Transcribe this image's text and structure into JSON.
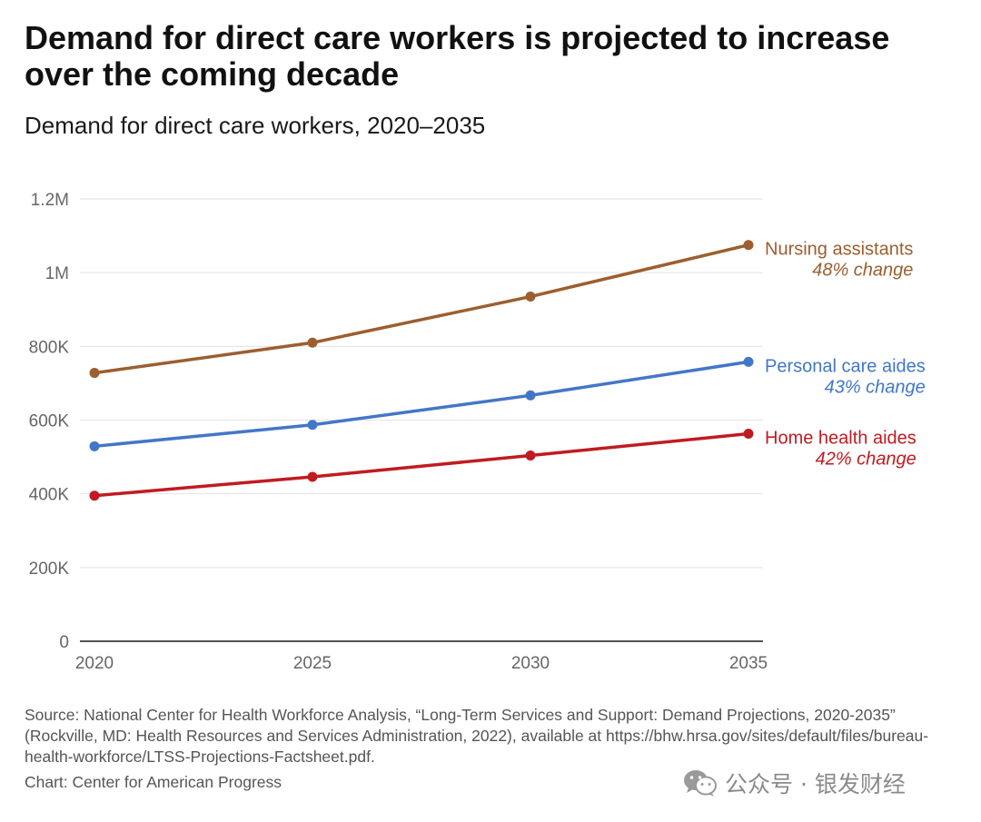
{
  "title": "Demand for direct care workers is projected to increase over the coming decade",
  "subtitle": "Demand for direct care workers, 2020–2035",
  "chart_data": {
    "type": "line",
    "x": [
      2020,
      2025,
      2030,
      2035
    ],
    "x_tick_labels": [
      "2020",
      "2025",
      "2030",
      "2035"
    ],
    "y_ticks": [
      0,
      200000,
      400000,
      600000,
      800000,
      1000000,
      1200000
    ],
    "y_tick_labels": [
      "0",
      "200K",
      "400K",
      "600K",
      "800K",
      "1M",
      "1.2M"
    ],
    "ylim": [
      0,
      1200000
    ],
    "grid": true,
    "legend": "direct labels at right end of each line",
    "series": [
      {
        "name": "Nursing assistants",
        "change_label": "48% change",
        "color": "#9c5e2f",
        "values": [
          728000,
          810000,
          935000,
          1075000
        ]
      },
      {
        "name": "Personal care aides",
        "change_label": "43% change",
        "color": "#4277c7",
        "values": [
          529000,
          587000,
          667000,
          758000
        ]
      },
      {
        "name": "Home health aides",
        "change_label": "42% change",
        "color": "#c01b21",
        "values": [
          395000,
          446000,
          504000,
          563000
        ]
      }
    ]
  },
  "source": {
    "text": "Source: National Center for Health Workforce Analysis, “Long-Term Services and Support: Demand Projections, 2020-2035” (Rockville, MD: Health Resources and Services Administration, 2022), available at https://bhw.hrsa.gov/sites/default/files/bureau-health-workforce/LTSS-Projections-Factsheet.pdf.",
    "credit": "Chart: Center for American Progress"
  },
  "watermark": {
    "text": "公众号 · 银发财经",
    "icon": "wechat-icon"
  },
  "colors": {
    "grid": "#e3e3e3",
    "axis_text": "#666666",
    "baseline": "#1a1a1a"
  }
}
